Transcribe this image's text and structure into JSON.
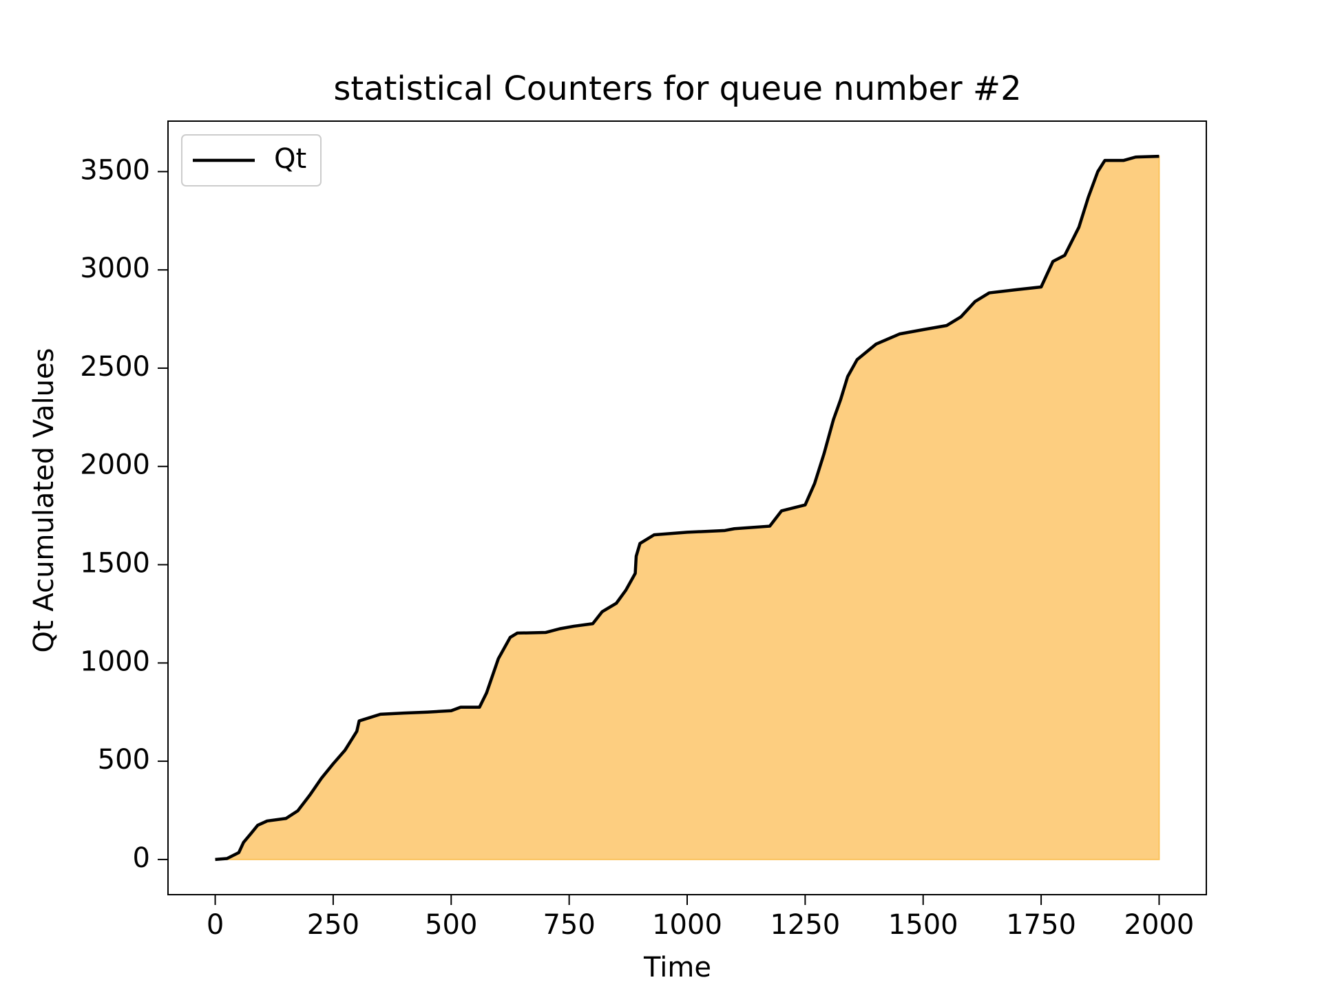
{
  "chart_data": {
    "type": "line",
    "title": "statistical Counters for queue number #2",
    "xlabel": "Time",
    "ylabel": "Qt Acumulated Values",
    "x": [
      0,
      25,
      50,
      60,
      75,
      90,
      110,
      150,
      175,
      200,
      225,
      250,
      275,
      300,
      305,
      350,
      400,
      450,
      500,
      520,
      560,
      575,
      600,
      625,
      640,
      700,
      730,
      760,
      800,
      820,
      850,
      870,
      890,
      892,
      900,
      930,
      1000,
      1080,
      1100,
      1175,
      1200,
      1250,
      1270,
      1290,
      1310,
      1325,
      1340,
      1360,
      1400,
      1450,
      1500,
      1550,
      1580,
      1610,
      1640,
      1700,
      1750,
      1775,
      1800,
      1830,
      1850,
      1870,
      1885,
      1925,
      1950,
      2000
    ],
    "series": [
      {
        "name": "Qt",
        "color": "#000000",
        "fill_color": "#fdce80",
        "fill_edge": "#fbc35c",
        "values": [
          0,
          5,
          35,
          87,
          130,
          174,
          196,
          209,
          248,
          326,
          413,
          487,
          556,
          652,
          705,
          739,
          745,
          750,
          757,
          775,
          775,
          848,
          1022,
          1130,
          1152,
          1155,
          1174,
          1187,
          1200,
          1261,
          1304,
          1370,
          1456,
          1543,
          1608,
          1652,
          1665,
          1674,
          1683,
          1696,
          1774,
          1804,
          1913,
          2065,
          2239,
          2339,
          2457,
          2543,
          2622,
          2674,
          2696,
          2717,
          2761,
          2839,
          2883,
          2900,
          2913,
          3043,
          3074,
          3217,
          3370,
          3500,
          3557,
          3557,
          3574,
          3578
        ]
      }
    ],
    "xlim": [
      -100,
      2100
    ],
    "xticks": [
      0,
      250,
      500,
      750,
      1000,
      1250,
      1500,
      1750,
      2000
    ],
    "ylim": [
      -178.9,
      3756.9
    ],
    "yticks": [
      0,
      500,
      1000,
      1500,
      2000,
      2500,
      3000,
      3500
    ],
    "legend": "upper left"
  }
}
